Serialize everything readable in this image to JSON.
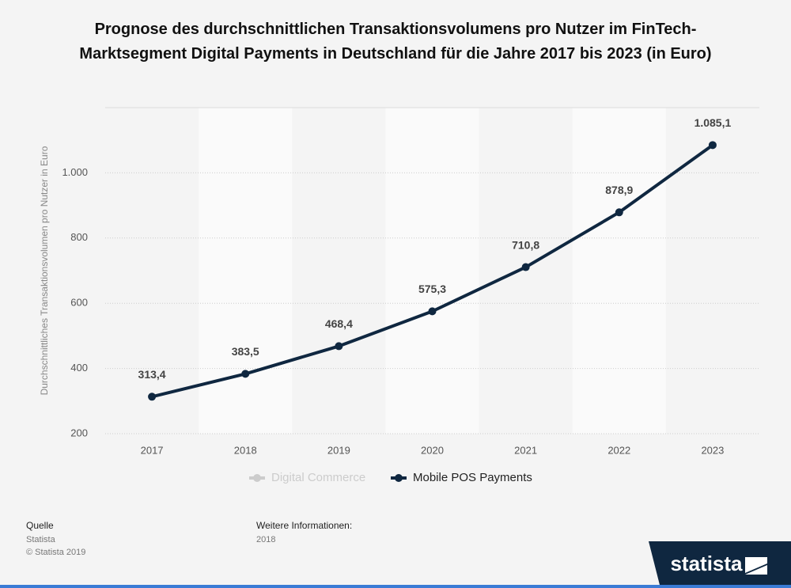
{
  "chart_data": {
    "type": "line",
    "title": "Prognose des durchschnittlichen Transaktionsvolumens pro Nutzer im FinTech-Marktsegment Digital Payments in Deutschland für die Jahre 2017 bis 2023 (in Euro)",
    "y_label": "Durchschnittliches Transaktionsvolumen pro Nutzer in Euro",
    "categories": [
      "2017",
      "2018",
      "2019",
      "2020",
      "2021",
      "2022",
      "2023"
    ],
    "series": [
      {
        "name": "Digital Commerce",
        "color": "#cccccc",
        "visible": false,
        "values": [
          null,
          null,
          null,
          null,
          null,
          null,
          null
        ]
      },
      {
        "name": "Mobile POS Payments",
        "color": "#0f2740",
        "visible": true,
        "values": [
          313.4,
          383.5,
          468.4,
          575.3,
          710.8,
          878.9,
          1085.1
        ],
        "value_labels": [
          "313,4",
          "383,5",
          "468,4",
          "575,3",
          "710,8",
          "878,9",
          "1.085,1"
        ]
      }
    ],
    "ylim": [
      200,
      1200
    ],
    "yticks": [
      200,
      400,
      600,
      800,
      {
        "value": 1000,
        "label": "1.000"
      }
    ],
    "grid": true,
    "legend": "bottom"
  },
  "footer": {
    "source_title": "Quelle",
    "source": "Statista",
    "copyright": "© Statista 2019",
    "info_title": "Weitere Informationen:",
    "info": "2018",
    "logo": "statista"
  }
}
